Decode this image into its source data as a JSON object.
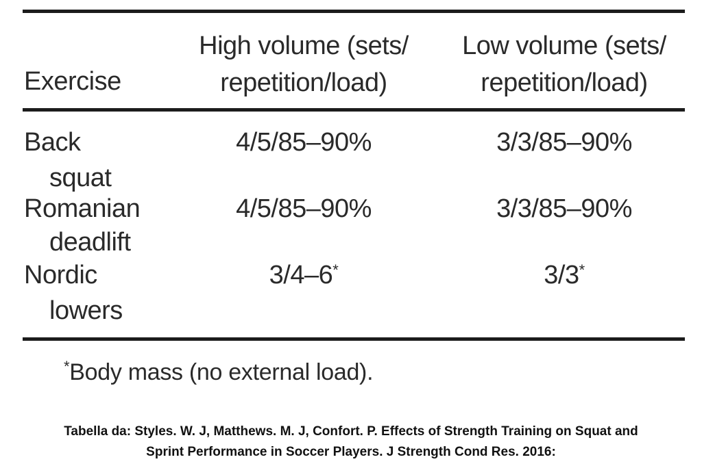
{
  "table": {
    "headers": {
      "exercise": "Exercise",
      "high_line1": "High volume (sets/",
      "high_line2": "repetition/load)",
      "low_line1": "Low volume (sets/",
      "low_line2": "repetition/load)"
    },
    "rows": [
      {
        "exercise_line1": "Back",
        "exercise_line2": "squat",
        "high": "4/5/85–90%",
        "high_mark": "",
        "low": "3/3/85–90%",
        "low_mark": ""
      },
      {
        "exercise_line1": "Romanian",
        "exercise_line2": "deadlift",
        "high": "4/5/85–90%",
        "high_mark": "",
        "low": "3/3/85–90%",
        "low_mark": ""
      },
      {
        "exercise_line1": "Nordic",
        "exercise_line2": "lowers",
        "high": "3/4–6",
        "high_mark": "*",
        "low": "3/3",
        "low_mark": "*"
      }
    ]
  },
  "footnote": {
    "mark": "*",
    "text": "Body mass (no external load)."
  },
  "caption": {
    "line1": "Tabella da: Styles. W. J, Matthews. M. J, Confort. P. Effects of Strength Training  on Squat and",
    "line2": "Sprint Performance in Soccer Players. J Strength Cond Res. 2016:"
  }
}
